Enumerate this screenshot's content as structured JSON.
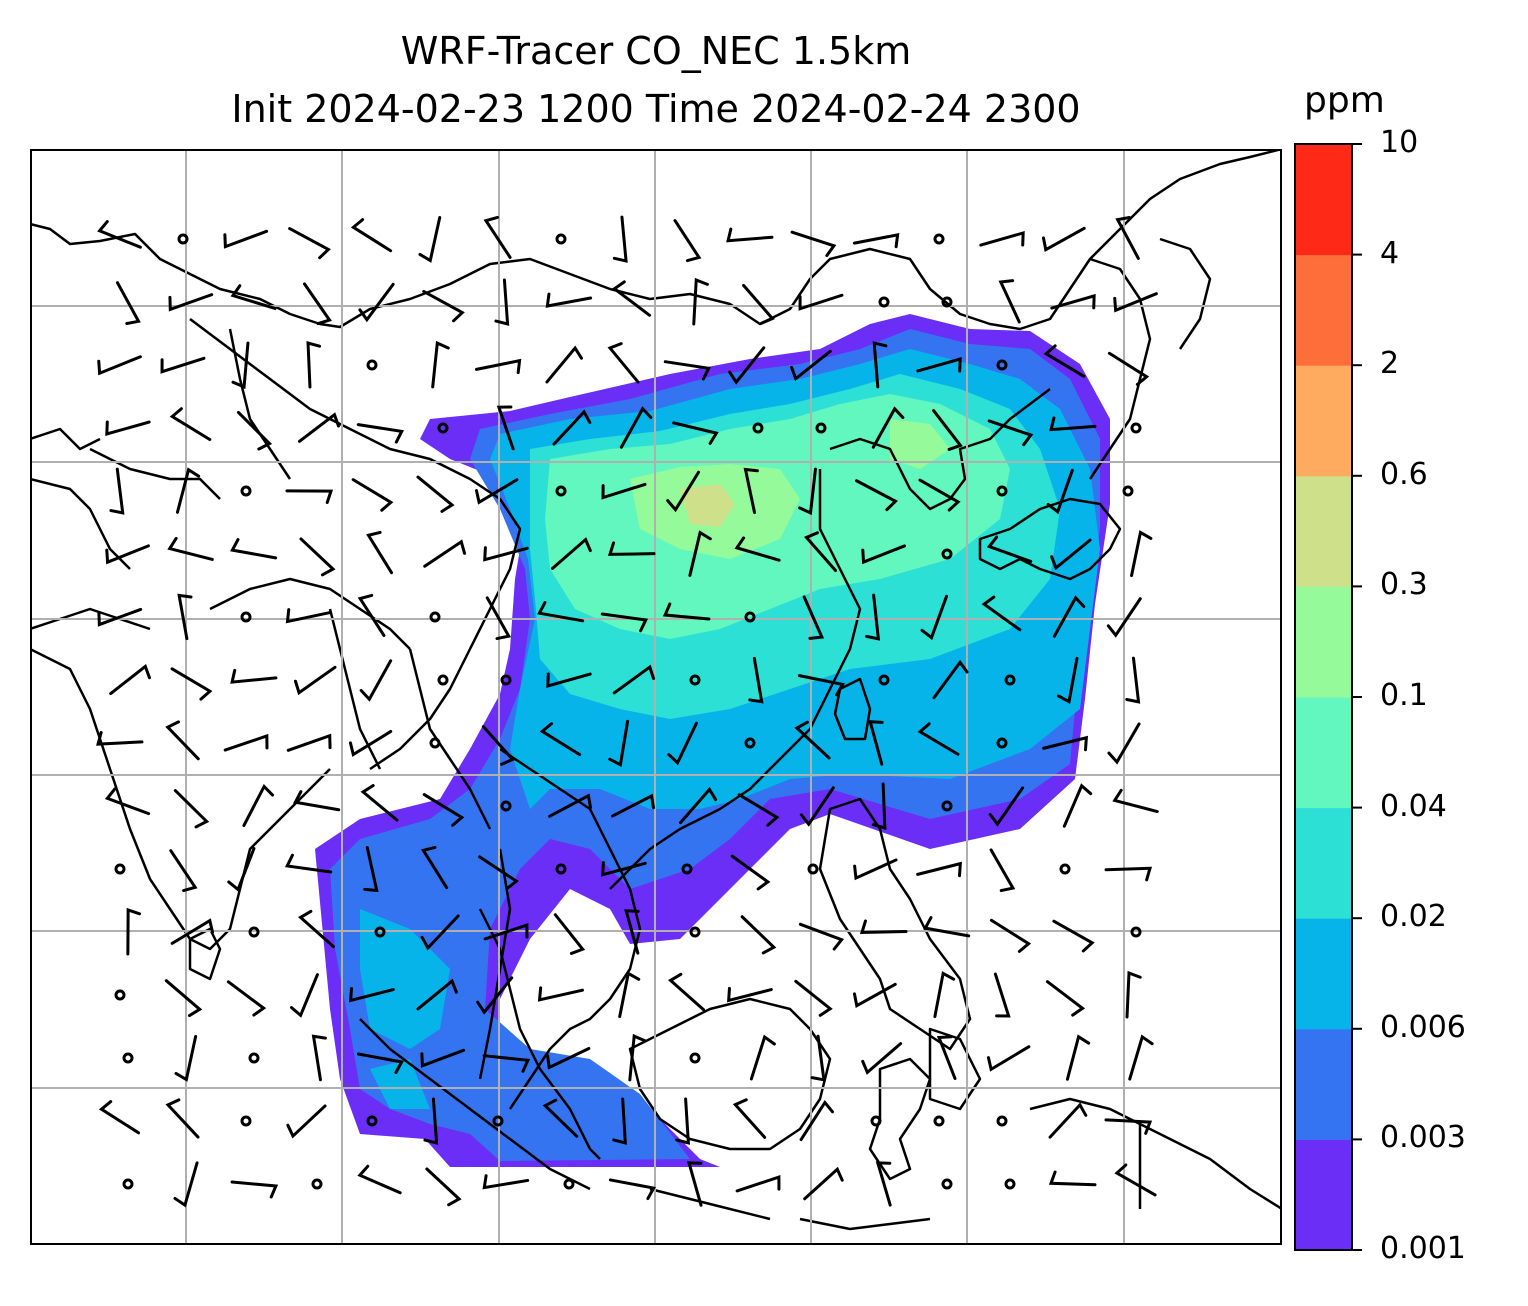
{
  "title": {
    "line1": "WRF-Tracer CO_NEC 1.5km",
    "line2": "Init 2024-02-23 1200 Time 2024-02-24 2300"
  },
  "colorbar": {
    "unit": "ppm",
    "levels": [
      "0.001",
      "0.003",
      "0.006",
      "0.02",
      "0.04",
      "0.1",
      "0.3",
      "0.6",
      "2",
      "4",
      "10"
    ],
    "colors": [
      "#6a2ef6",
      "#3574f0",
      "#06b4ea",
      "#2de0d6",
      "#62f7be",
      "#95fb9a",
      "#cfe08a",
      "#feab5f",
      "#fe6e3b",
      "#fe2a17"
    ]
  },
  "map": {
    "gridlines": true,
    "coastline_color": "#000000",
    "gridline_color": "#b0b0b0"
  }
}
